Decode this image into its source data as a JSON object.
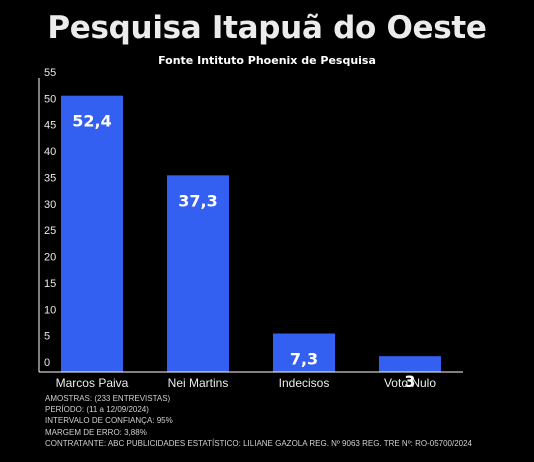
{
  "header": {
    "title": "Pesquisa Itapuã do Oeste",
    "subtitle": "Fonte Intituto Phoenix de Pesquisa"
  },
  "chart_data": {
    "type": "bar",
    "title": "Pesquisa Itapuã do Oeste",
    "subtitle": "Fonte Intituto Phoenix de Pesquisa",
    "categories": [
      "Marcos Paiva",
      "Nei Martins",
      "Indecisos",
      "Voto Nulo"
    ],
    "values": [
      52.4,
      37.3,
      7.3,
      3
    ],
    "value_labels": [
      "52,4",
      "37,3",
      "7,3",
      "3"
    ],
    "xlabel": "",
    "ylabel": "",
    "ylim": [
      0,
      55
    ],
    "yticks": [
      0,
      5,
      10,
      15,
      20,
      25,
      30,
      35,
      40,
      45,
      50,
      55
    ],
    "grid": false,
    "legend": "none",
    "bar_color": "#3360f0",
    "axis_color": "#ffffff"
  },
  "footnotes": [
    "AMOSTRAS: (233 ENTREVISTAS)",
    "PERÍODO: (11 a 12/09/2024)",
    "INTERVALO DE CONFIANÇA: 95%",
    "MARGEM DE ERRO: 3,88%",
    "CONTRATANTE: ABC PUBLICIDADES ESTATÍSTICO: LILIANE GAZOLA REG. Nº 9063 REG. TRE Nº: RO-05700/2024"
  ]
}
